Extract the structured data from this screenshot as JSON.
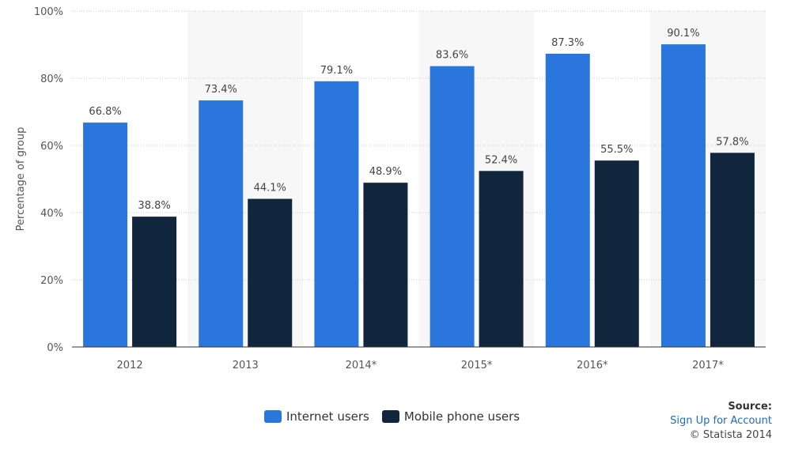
{
  "chart_data": {
    "type": "bar",
    "categories": [
      "2012",
      "2013",
      "2014*",
      "2015*",
      "2016*",
      "2017*"
    ],
    "series": [
      {
        "name": "Internet users",
        "color": "#2a76dd",
        "values": [
          66.8,
          73.4,
          79.1,
          83.6,
          87.3,
          90.1
        ],
        "labels": [
          "66.8%",
          "73.4%",
          "79.1%",
          "83.6%",
          "87.3%",
          "90.1%"
        ]
      },
      {
        "name": "Mobile phone users",
        "color": "#11263c",
        "values": [
          38.8,
          44.1,
          48.9,
          52.4,
          55.5,
          57.8
        ],
        "labels": [
          "38.8%",
          "44.1%",
          "48.9%",
          "52.4%",
          "55.5%",
          "57.8%"
        ]
      }
    ],
    "ylabel": "Percentage of group",
    "ylim": [
      0,
      100
    ],
    "yticks": [
      "0%",
      "20%",
      "40%",
      "60%",
      "80%",
      "100%"
    ],
    "grid": true,
    "legend_position": "bottom"
  },
  "source": {
    "title": "Source:",
    "link": "Sign Up for Account",
    "copyright": "© Statista 2014"
  }
}
